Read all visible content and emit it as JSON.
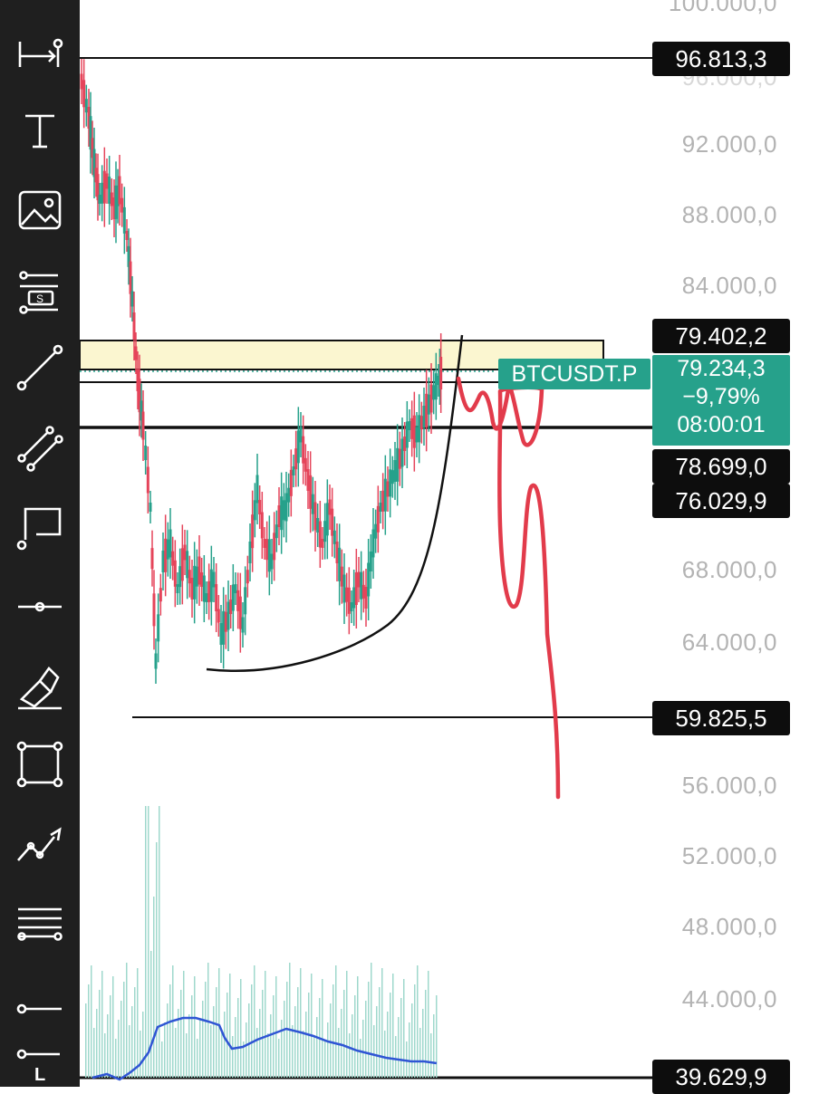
{
  "toolbar": {
    "tools": [
      {
        "name": "measure-tool",
        "icon": "ruler-measure-icon"
      },
      {
        "name": "text-tool",
        "icon": "text-icon"
      },
      {
        "name": "image-tool",
        "icon": "image-icon"
      },
      {
        "name": "indicator-settings-tool",
        "icon": "sliders-icon"
      },
      {
        "name": "trend-line-tool",
        "icon": "trend-line-icon"
      },
      {
        "name": "parallel-channel-tool",
        "icon": "channel-icon"
      },
      {
        "name": "callout-tool",
        "icon": "callout-icon"
      },
      {
        "name": "horizontal-ray-tool",
        "icon": "horizontal-ray-icon"
      },
      {
        "name": "brush-tool",
        "icon": "brush-icon"
      },
      {
        "name": "rectangle-tool",
        "icon": "rectangle-icon"
      },
      {
        "name": "pattern-tool",
        "icon": "pattern-icon"
      },
      {
        "name": "fib-levels-tool",
        "icon": "levels-icon"
      },
      {
        "name": "horizontal-line-tool",
        "icon": "horizontal-line-icon"
      },
      {
        "name": "long-position-tool",
        "icon": "long-position-icon"
      }
    ],
    "long_label": "L"
  },
  "axis": {
    "top_partial": "100.000,0",
    "hidden_label": "96.000,0",
    "labels": [
      "92.000,0",
      "88.000,0",
      "84.000,0",
      "68.000,0",
      "64.000,0",
      "56.000,0",
      "52.000,0",
      "48.000,0",
      "44.000,0"
    ]
  },
  "price_tags": {
    "line_top": "96.813,3",
    "zone_top": "79.402,2",
    "zone_mid": "78.699,0",
    "support": "76.029,9",
    "low": "59.825,5",
    "bottom": "39.629,9"
  },
  "ticker": {
    "symbol": "BTCUSDT.P",
    "last_price": "79.234,3",
    "change": "−9,79%",
    "countdown": "08:00:01"
  },
  "colors": {
    "toolbar_bg": "#1f1f1f",
    "up_candle": "#26a18b",
    "down_candle": "#e5445a",
    "zone_fill": "#fbf6d0",
    "projection": "#e23b4b",
    "volume_ma": "#2f55d4"
  }
}
